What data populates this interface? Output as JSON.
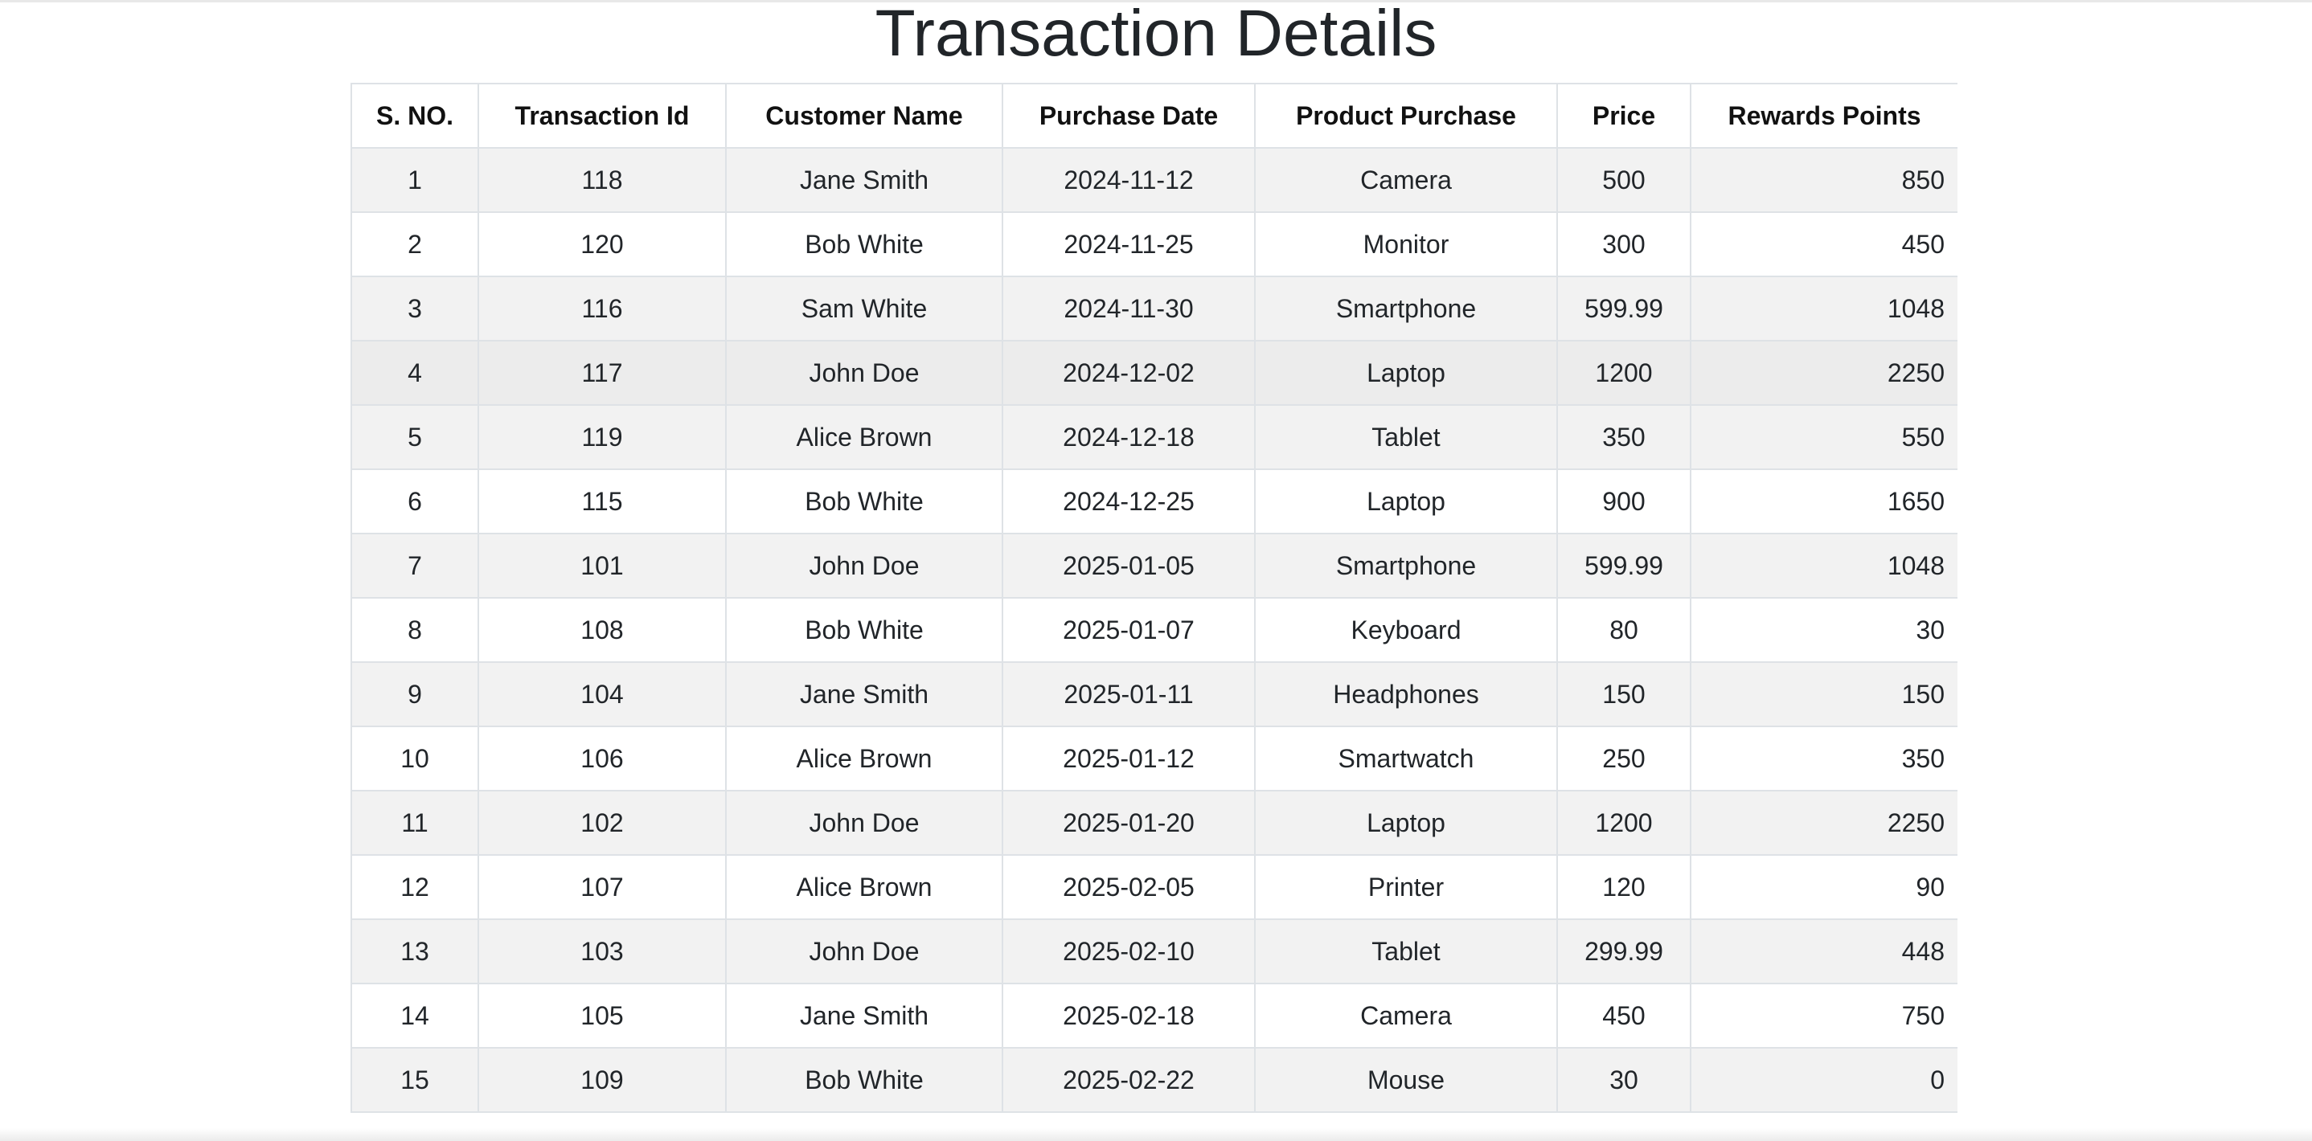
{
  "page": {
    "title": "Transaction Details"
  },
  "table": {
    "headers": [
      "S. NO.",
      "Transaction Id",
      "Customer Name",
      "Purchase Date",
      "Product Purchase",
      "Price",
      "Rewards Points"
    ],
    "rows": [
      [
        "1",
        "118",
        "Jane Smith",
        "2024-11-12",
        "Camera",
        "500",
        "850"
      ],
      [
        "2",
        "120",
        "Bob White",
        "2024-11-25",
        "Monitor",
        "300",
        "450"
      ],
      [
        "3",
        "116",
        "Sam White",
        "2024-11-30",
        "Smartphone",
        "599.99",
        "1048"
      ],
      [
        "4",
        "117",
        "John Doe",
        "2024-12-02",
        "Laptop",
        "1200",
        "2250"
      ],
      [
        "5",
        "119",
        "Alice Brown",
        "2024-12-18",
        "Tablet",
        "350",
        "550"
      ],
      [
        "6",
        "115",
        "Bob White",
        "2024-12-25",
        "Laptop",
        "900",
        "1650"
      ],
      [
        "7",
        "101",
        "John Doe",
        "2025-01-05",
        "Smartphone",
        "599.99",
        "1048"
      ],
      [
        "8",
        "108",
        "Bob White",
        "2025-01-07",
        "Keyboard",
        "80",
        "30"
      ],
      [
        "9",
        "104",
        "Jane Smith",
        "2025-01-11",
        "Headphones",
        "150",
        "150"
      ],
      [
        "10",
        "106",
        "Alice Brown",
        "2025-01-12",
        "Smartwatch",
        "250",
        "350"
      ],
      [
        "11",
        "102",
        "John Doe",
        "2025-01-20",
        "Laptop",
        "1200",
        "2250"
      ],
      [
        "12",
        "107",
        "Alice Brown",
        "2025-02-05",
        "Printer",
        "120",
        "90"
      ],
      [
        "13",
        "103",
        "John Doe",
        "2025-02-10",
        "Tablet",
        "299.99",
        "448"
      ],
      [
        "14",
        "105",
        "Jane Smith",
        "2025-02-18",
        "Camera",
        "450",
        "750"
      ],
      [
        "15",
        "109",
        "Bob White",
        "2025-02-22",
        "Mouse",
        "30",
        "0"
      ]
    ]
  }
}
